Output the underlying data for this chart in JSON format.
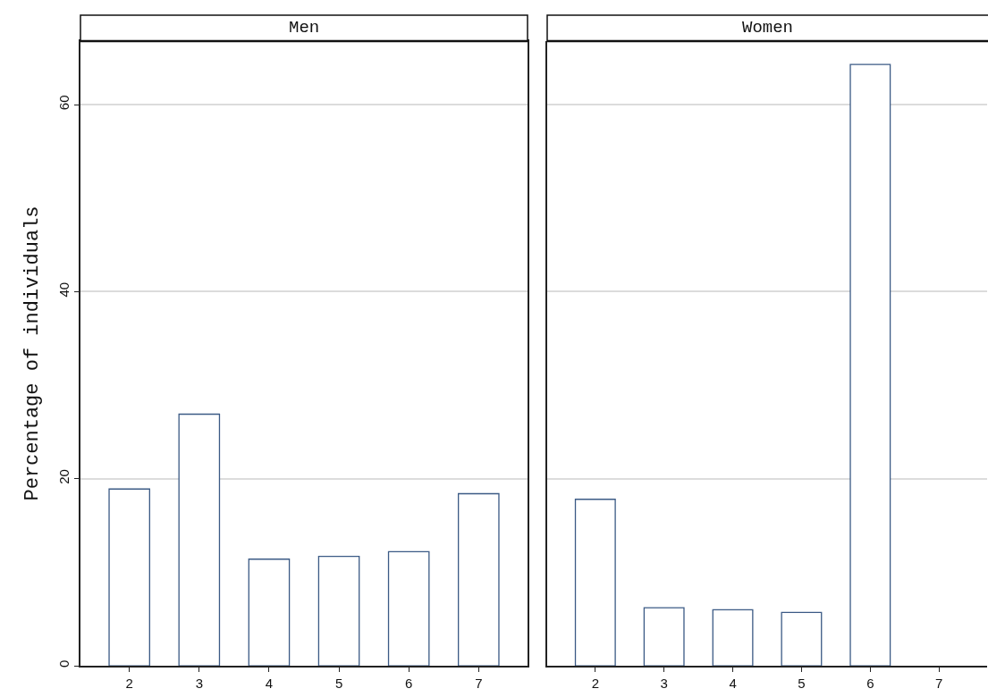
{
  "chart_data": [
    {
      "type": "bar",
      "title": "Men",
      "ylabel": "Percentage of individuals",
      "categories": [
        "2",
        "3",
        "4",
        "5",
        "6",
        "7"
      ],
      "values": [
        18.9,
        26.9,
        11.4,
        11.7,
        12.2,
        18.4
      ],
      "color": "#3b5a85",
      "ylim": [
        0,
        66.8
      ],
      "yticks": [
        0,
        20,
        40,
        60
      ],
      "grid": "y"
    },
    {
      "type": "bar",
      "title": "Women",
      "categories": [
        "2",
        "3",
        "4",
        "5",
        "6",
        "7"
      ],
      "values": [
        17.8,
        6.2,
        6.0,
        5.7,
        64.3,
        null
      ],
      "color": "#3b5a85",
      "ylim": [
        0,
        66.8
      ],
      "yticks": [
        0,
        20,
        40,
        60
      ],
      "grid": "y",
      "tick_labels": "x"
    }
  ]
}
